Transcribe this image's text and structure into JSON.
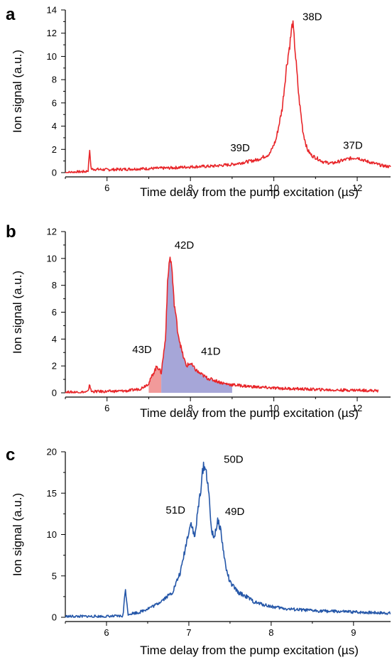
{
  "chart_data": [
    {
      "panel": "a",
      "type": "line",
      "xlabel": "Time delay from the pump excitation (µs)",
      "ylabel": "Ion signal (a.u.)",
      "xlim": [
        5,
        12.8
      ],
      "ylim": [
        0,
        14
      ],
      "xticks": [
        6,
        8,
        10,
        12
      ],
      "yticks": [
        0,
        2,
        4,
        6,
        8,
        10,
        12,
        14
      ],
      "color": "#e8262a",
      "series": [
        {
          "x": [
            5.0,
            5.5,
            5.55,
            5.58,
            5.62,
            6.0,
            6.5,
            7.0,
            7.5,
            8.0,
            8.5,
            9.0,
            9.3,
            9.6,
            9.9,
            10.05,
            10.2,
            10.3,
            10.4,
            10.45,
            10.5,
            10.6,
            10.7,
            10.8,
            10.9,
            11.0,
            11.2,
            11.4,
            11.6,
            11.8,
            12.0,
            12.2,
            12.4,
            12.6,
            12.8
          ],
          "y": [
            0.0,
            0.1,
            0.2,
            2.0,
            0.3,
            0.25,
            0.3,
            0.35,
            0.4,
            0.5,
            0.55,
            0.7,
            0.9,
            1.1,
            1.6,
            2.8,
            5.5,
            9.0,
            11.5,
            13.0,
            11.0,
            6.5,
            3.5,
            2.0,
            1.5,
            1.3,
            0.9,
            0.8,
            1.0,
            1.2,
            1.3,
            1.0,
            0.8,
            0.6,
            0.5
          ]
        }
      ],
      "annotations": [
        {
          "text": "38D",
          "x": 10.45,
          "y": 13.0
        },
        {
          "text": "39D",
          "x": 9.4,
          "y": 1.1
        },
        {
          "text": "37D",
          "x": 11.9,
          "y": 1.3
        }
      ]
    },
    {
      "panel": "b",
      "type": "area",
      "xlabel": "Time delay from the pump excitation (µs)",
      "ylabel": "Ion signal (a.u.)",
      "xlim": [
        5,
        12.8
      ],
      "ylim": [
        0,
        12
      ],
      "xticks": [
        6,
        8,
        10,
        12
      ],
      "yticks": [
        0,
        2,
        4,
        6,
        8,
        10,
        12
      ],
      "color": "#e8262a",
      "fill_colors": {
        "43D": "#f19a9a",
        "42D_41D": "#a6a6d8"
      },
      "fill_ranges": {
        "43D": [
          7.0,
          7.3
        ],
        "42D_41D": [
          7.3,
          9.0
        ]
      },
      "series": [
        {
          "x": [
            5.0,
            5.5,
            5.55,
            5.58,
            5.62,
            6.0,
            6.5,
            6.8,
            7.0,
            7.1,
            7.2,
            7.3,
            7.4,
            7.45,
            7.5,
            7.55,
            7.6,
            7.7,
            7.8,
            7.9,
            8.0,
            8.1,
            8.2,
            8.4,
            8.6,
            8.8,
            9.0,
            9.5,
            10.0,
            10.5,
            11.0,
            11.5,
            12.0,
            12.5
          ],
          "y": [
            0.05,
            0.05,
            0.1,
            0.7,
            0.1,
            0.1,
            0.15,
            0.3,
            0.7,
            1.4,
            2.0,
            1.5,
            4.0,
            8.0,
            10.1,
            9.5,
            7.0,
            4.5,
            3.0,
            2.0,
            2.2,
            1.8,
            1.5,
            1.1,
            0.9,
            0.7,
            0.6,
            0.45,
            0.35,
            0.3,
            0.25,
            0.2,
            0.2,
            0.15
          ]
        }
      ],
      "annotations": [
        {
          "text": "42D",
          "x": 7.55,
          "y": 10.1
        },
        {
          "text": "43D",
          "x": 7.15,
          "y": 2.0
        },
        {
          "text": "41D",
          "x": 8.05,
          "y": 2.2
        }
      ]
    },
    {
      "panel": "c",
      "type": "line",
      "xlabel": "Time delay from the pump excitation (µs)",
      "ylabel": "Ion signal (a.u.)",
      "xlim": [
        5.5,
        9.45
      ],
      "ylim": [
        0,
        20
      ],
      "xticks": [
        6,
        7,
        8,
        9
      ],
      "yticks": [
        0,
        5,
        10,
        15,
        20
      ],
      "color": "#2456a8",
      "series": [
        {
          "x": [
            5.5,
            6.0,
            6.2,
            6.23,
            6.26,
            6.4,
            6.6,
            6.8,
            6.9,
            6.95,
            7.0,
            7.03,
            7.07,
            7.1,
            7.15,
            7.18,
            7.2,
            7.23,
            7.27,
            7.3,
            7.35,
            7.38,
            7.42,
            7.45,
            7.5,
            7.6,
            7.7,
            7.8,
            8.0,
            8.2,
            8.5,
            8.8,
            9.1,
            9.45
          ],
          "y": [
            0.1,
            0.1,
            0.15,
            3.5,
            0.4,
            0.6,
            1.5,
            3.0,
            5.5,
            8.0,
            10.5,
            11.5,
            9.5,
            12.0,
            16.0,
            18.5,
            18.0,
            16.5,
            11.0,
            9.5,
            11.5,
            11.0,
            8.0,
            6.0,
            4.2,
            3.0,
            2.5,
            1.8,
            1.3,
            1.0,
            0.8,
            0.7,
            0.6,
            0.5
          ]
        }
      ],
      "annotations": [
        {
          "text": "50D",
          "x": 7.2,
          "y": 18.5
        },
        {
          "text": "51D",
          "x": 7.03,
          "y": 11.5
        },
        {
          "text": "49D",
          "x": 7.37,
          "y": 11.5
        }
      ]
    }
  ]
}
